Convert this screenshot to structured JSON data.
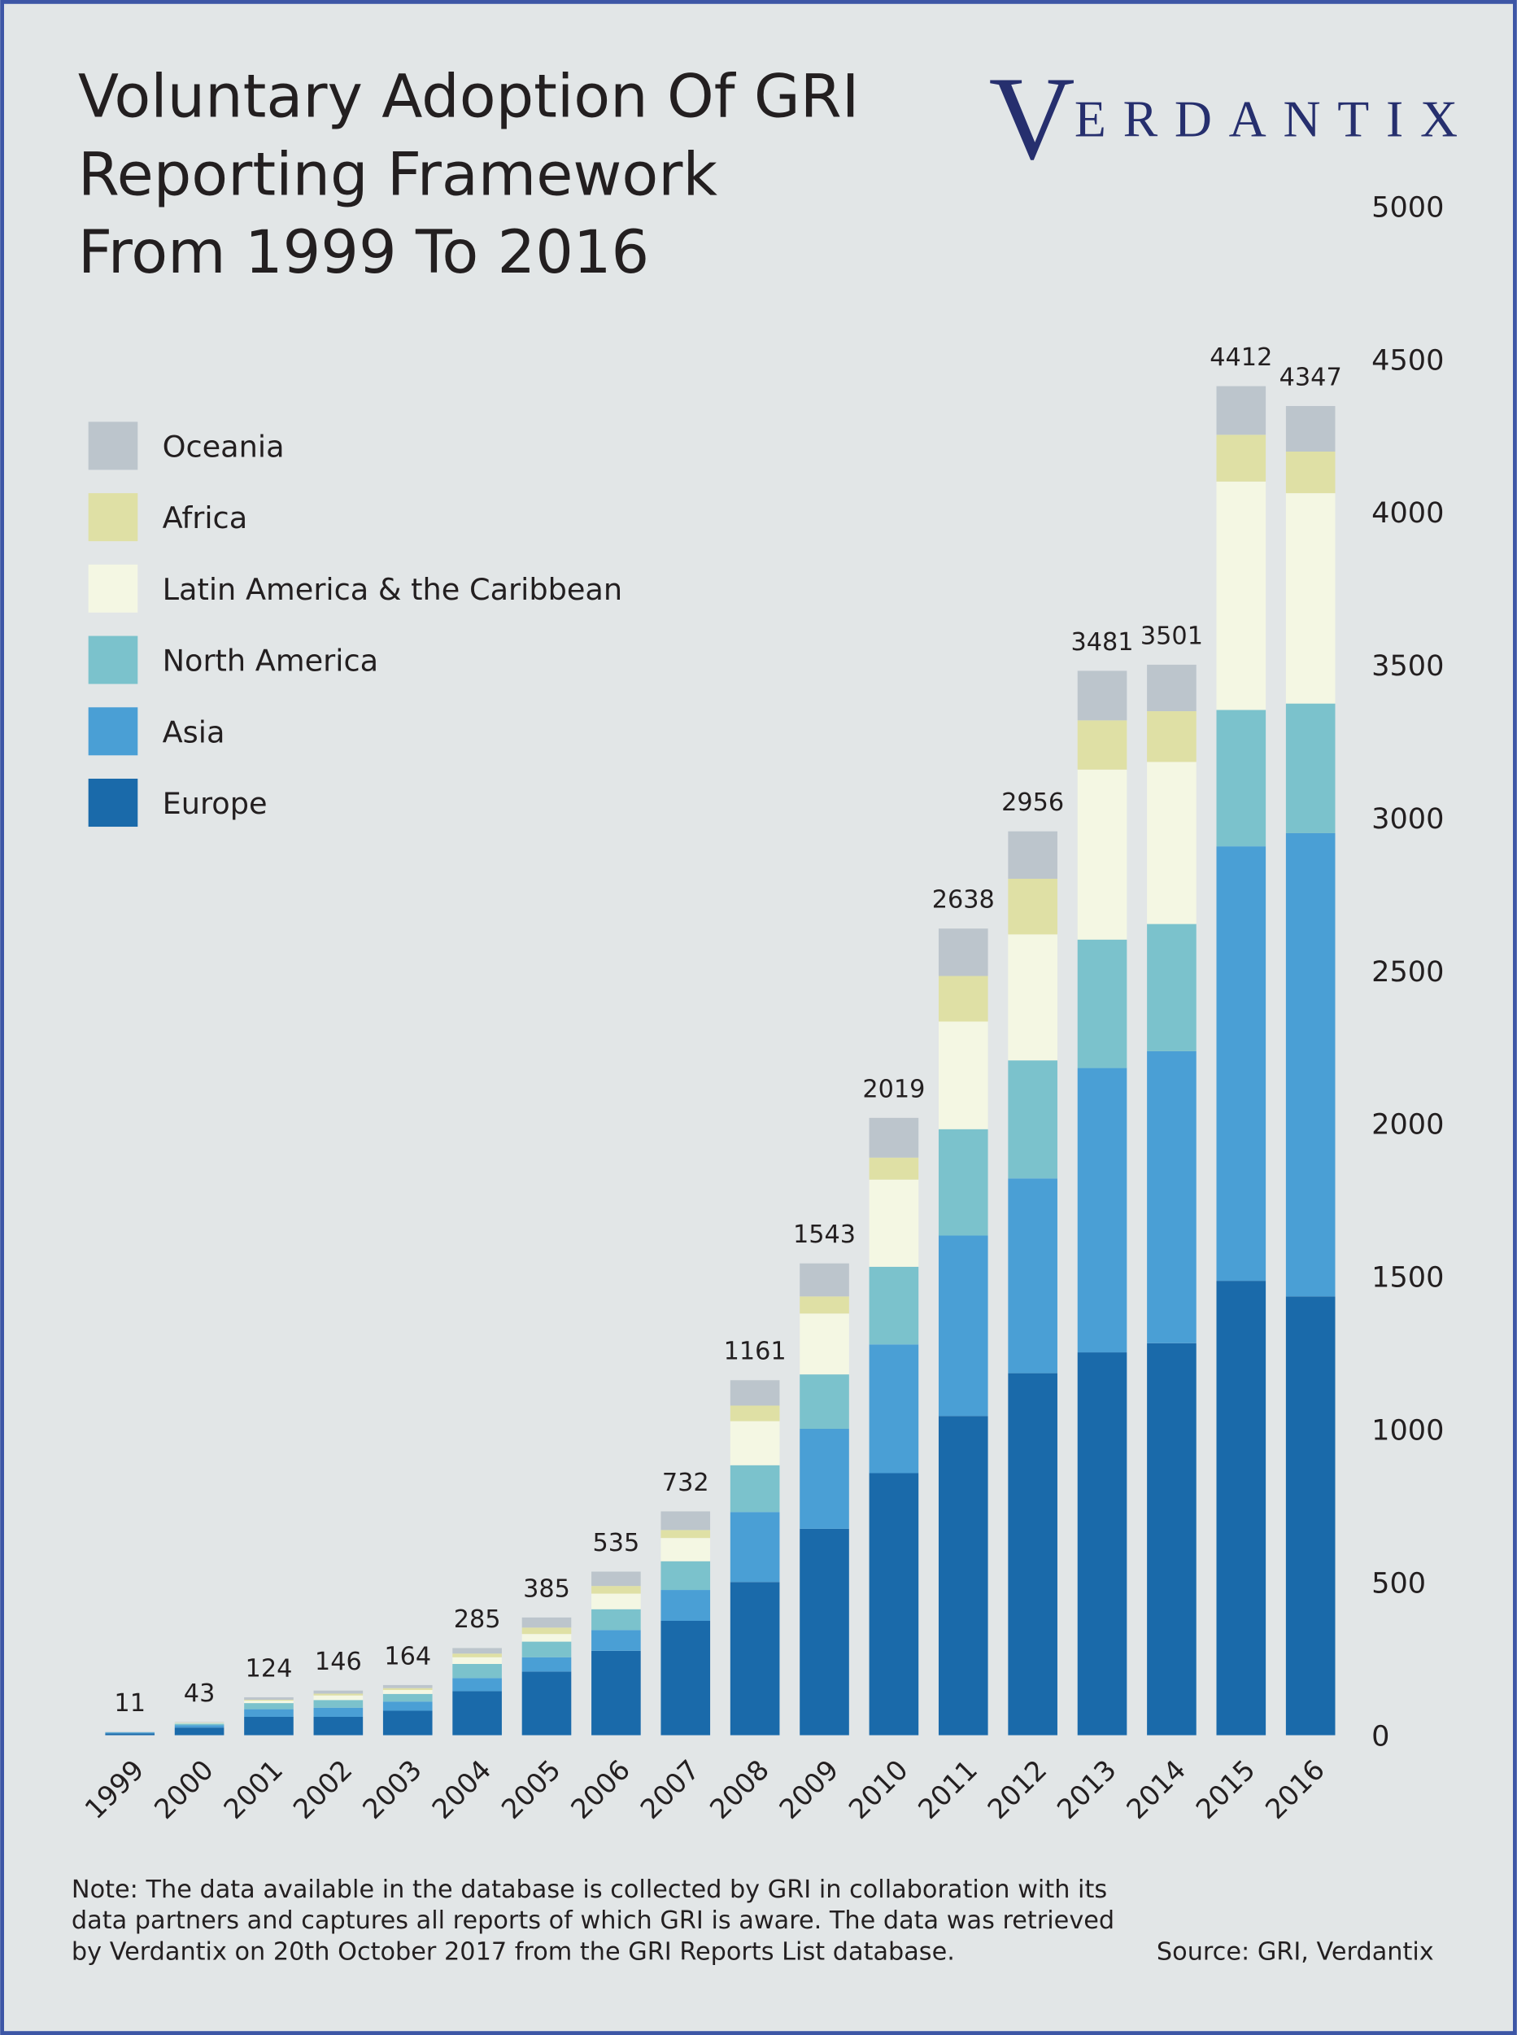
{
  "chart_data": {
    "type": "stacked-bar",
    "title": [
      "Voluntary Adoption Of GRI",
      "Reporting Framework",
      "From 1999 To 2016"
    ],
    "logo": {
      "initial": "V",
      "rest": "ERDANTIX"
    },
    "categories": [
      "1999",
      "2000",
      "2001",
      "2002",
      "2003",
      "2004",
      "2005",
      "2006",
      "2007",
      "2008",
      "2009",
      "2010",
      "2011",
      "2012",
      "2013",
      "2014",
      "2015",
      "2016"
    ],
    "series": [
      {
        "name": "Europe",
        "color": "#1a6aaa",
        "values": [
          6,
          25,
          60,
          60,
          80,
          144,
          208,
          276,
          374,
          501,
          675,
          857,
          1044,
          1184,
          1252,
          1282,
          1486,
          1435
        ]
      },
      {
        "name": "Asia",
        "color": "#4a9fd5",
        "values": [
          3,
          8,
          25,
          30,
          30,
          43,
          47,
          68,
          101,
          229,
          327,
          421,
          590,
          637,
          930,
          955,
          1421,
          1515
        ]
      },
      {
        "name": "North America",
        "color": "#7bc2cc",
        "values": [
          1,
          5,
          20,
          25,
          25,
          46,
          51,
          68,
          94,
          153,
          178,
          254,
          348,
          386,
          420,
          416,
          446,
          424
        ]
      },
      {
        "name": "Latin America & the Caribbean",
        "color": "#f4f7e3",
        "values": [
          0,
          2,
          8,
          15,
          13,
          22,
          25,
          51,
          76,
          144,
          199,
          285,
          352,
          412,
          556,
          530,
          747,
          688
        ]
      },
      {
        "name": "Africa",
        "color": "#dfe0a5",
        "values": [
          0,
          1,
          3,
          6,
          6,
          12,
          21,
          25,
          26,
          51,
          56,
          72,
          149,
          182,
          161,
          166,
          153,
          136
        ]
      },
      {
        "name": "Oceania",
        "color": "#bcc5cc",
        "values": [
          1,
          2,
          8,
          10,
          10,
          18,
          33,
          47,
          61,
          83,
          108,
          130,
          155,
          155,
          162,
          152,
          159,
          149
        ]
      }
    ],
    "totals": [
      11,
      43,
      124,
      146,
      164,
      285,
      385,
      535,
      732,
      1161,
      1543,
      2019,
      2638,
      2956,
      3481,
      3501,
      4412,
      4347
    ],
    "ylim": [
      0,
      5000
    ],
    "yticks": [
      0,
      500,
      1000,
      1500,
      2000,
      2500,
      3000,
      3500,
      4000,
      4500,
      5000
    ],
    "note": [
      "Note: The data available in the database is collected by GRI in collaboration with its",
      "data partners and captures all reports of which GRI is aware. The data was retrieved",
      "by Verdantix on 20th October 2017 from the GRI Reports List database."
    ],
    "source": "Source: GRI, Verdantix"
  }
}
